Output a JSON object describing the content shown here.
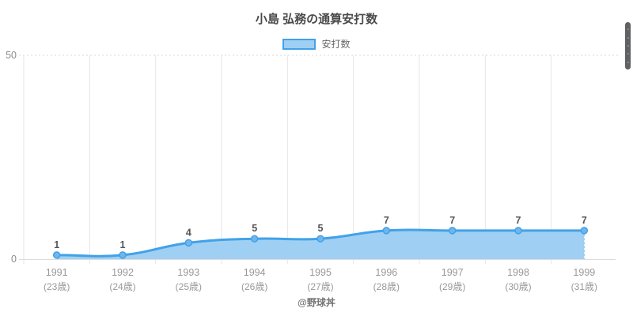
{
  "title": "小島 弘務の通算安打数",
  "footer": "@野球丼",
  "colors": {
    "line": "#42A1E8",
    "fill": "#9FD0F3",
    "fill_edge_dash": "#8CC7EF",
    "point_fill": "#6FB6EC",
    "point_stroke": "#42A1E8",
    "title_text": "#4A4A4A",
    "data_label": "#555555",
    "tick_label": "#999999",
    "y_tick_label": "#8C8C8C",
    "grid": "#E6E6E6",
    "axis": "#DCDCDC",
    "top_grid_dotted": "#D8D8D8",
    "legend_text": "#666666",
    "footer_text": "#757575",
    "scrollbar": "#5F6163"
  },
  "chart_data": {
    "type": "area",
    "title": "小島 弘務の通算安打数",
    "series_name": "安打数",
    "categories": [
      "1991",
      "1992",
      "1993",
      "1994",
      "1995",
      "1996",
      "1997",
      "1998",
      "1999"
    ],
    "age_labels": [
      "(23歳)",
      "(24歳)",
      "(25歳)",
      "(26歳)",
      "(27歳)",
      "(28歳)",
      "(29歳)",
      "(30歳)",
      "(31歳)"
    ],
    "values": [
      1,
      1,
      4,
      5,
      5,
      7,
      7,
      7,
      7
    ],
    "data_labels": [
      "1",
      "1",
      "4",
      "5",
      "5",
      "7",
      "7",
      "7",
      "7"
    ],
    "ylabel": "",
    "xlabel": "",
    "ylim": [
      0,
      50
    ],
    "y_ticks": [
      "0",
      "50"
    ],
    "grid": "vertical category boundaries on, top y=50 gridline dotted",
    "legend_position": "top",
    "line_tension": 0.4
  }
}
